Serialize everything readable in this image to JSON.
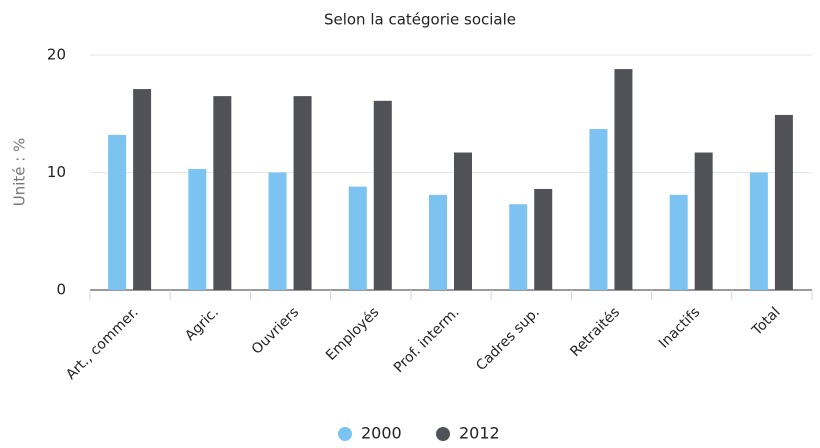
{
  "chart_data": {
    "type": "bar",
    "title": "Selon la catégorie sociale",
    "y_label": "Unité : %",
    "categories": [
      "Art., commer.",
      "Agric.",
      "Ouvriers",
      "Employés",
      "Prof. interm.",
      "Cadres sup.",
      "Retraités",
      "Inactifs",
      "Total"
    ],
    "series": [
      {
        "name": "2000",
        "color": "#7cc3f2",
        "values": [
          13.2,
          10.3,
          10.0,
          8.8,
          8.1,
          7.3,
          13.7,
          8.1,
          10.0
        ]
      },
      {
        "name": "2012",
        "color": "#505257",
        "values": [
          17.1,
          16.5,
          16.5,
          16.1,
          11.7,
          8.6,
          18.8,
          11.7,
          14.9
        ]
      }
    ],
    "ylim": [
      0,
      20
    ],
    "yticks": [
      0,
      10,
      20
    ],
    "grid": true,
    "legend": "bottom"
  }
}
